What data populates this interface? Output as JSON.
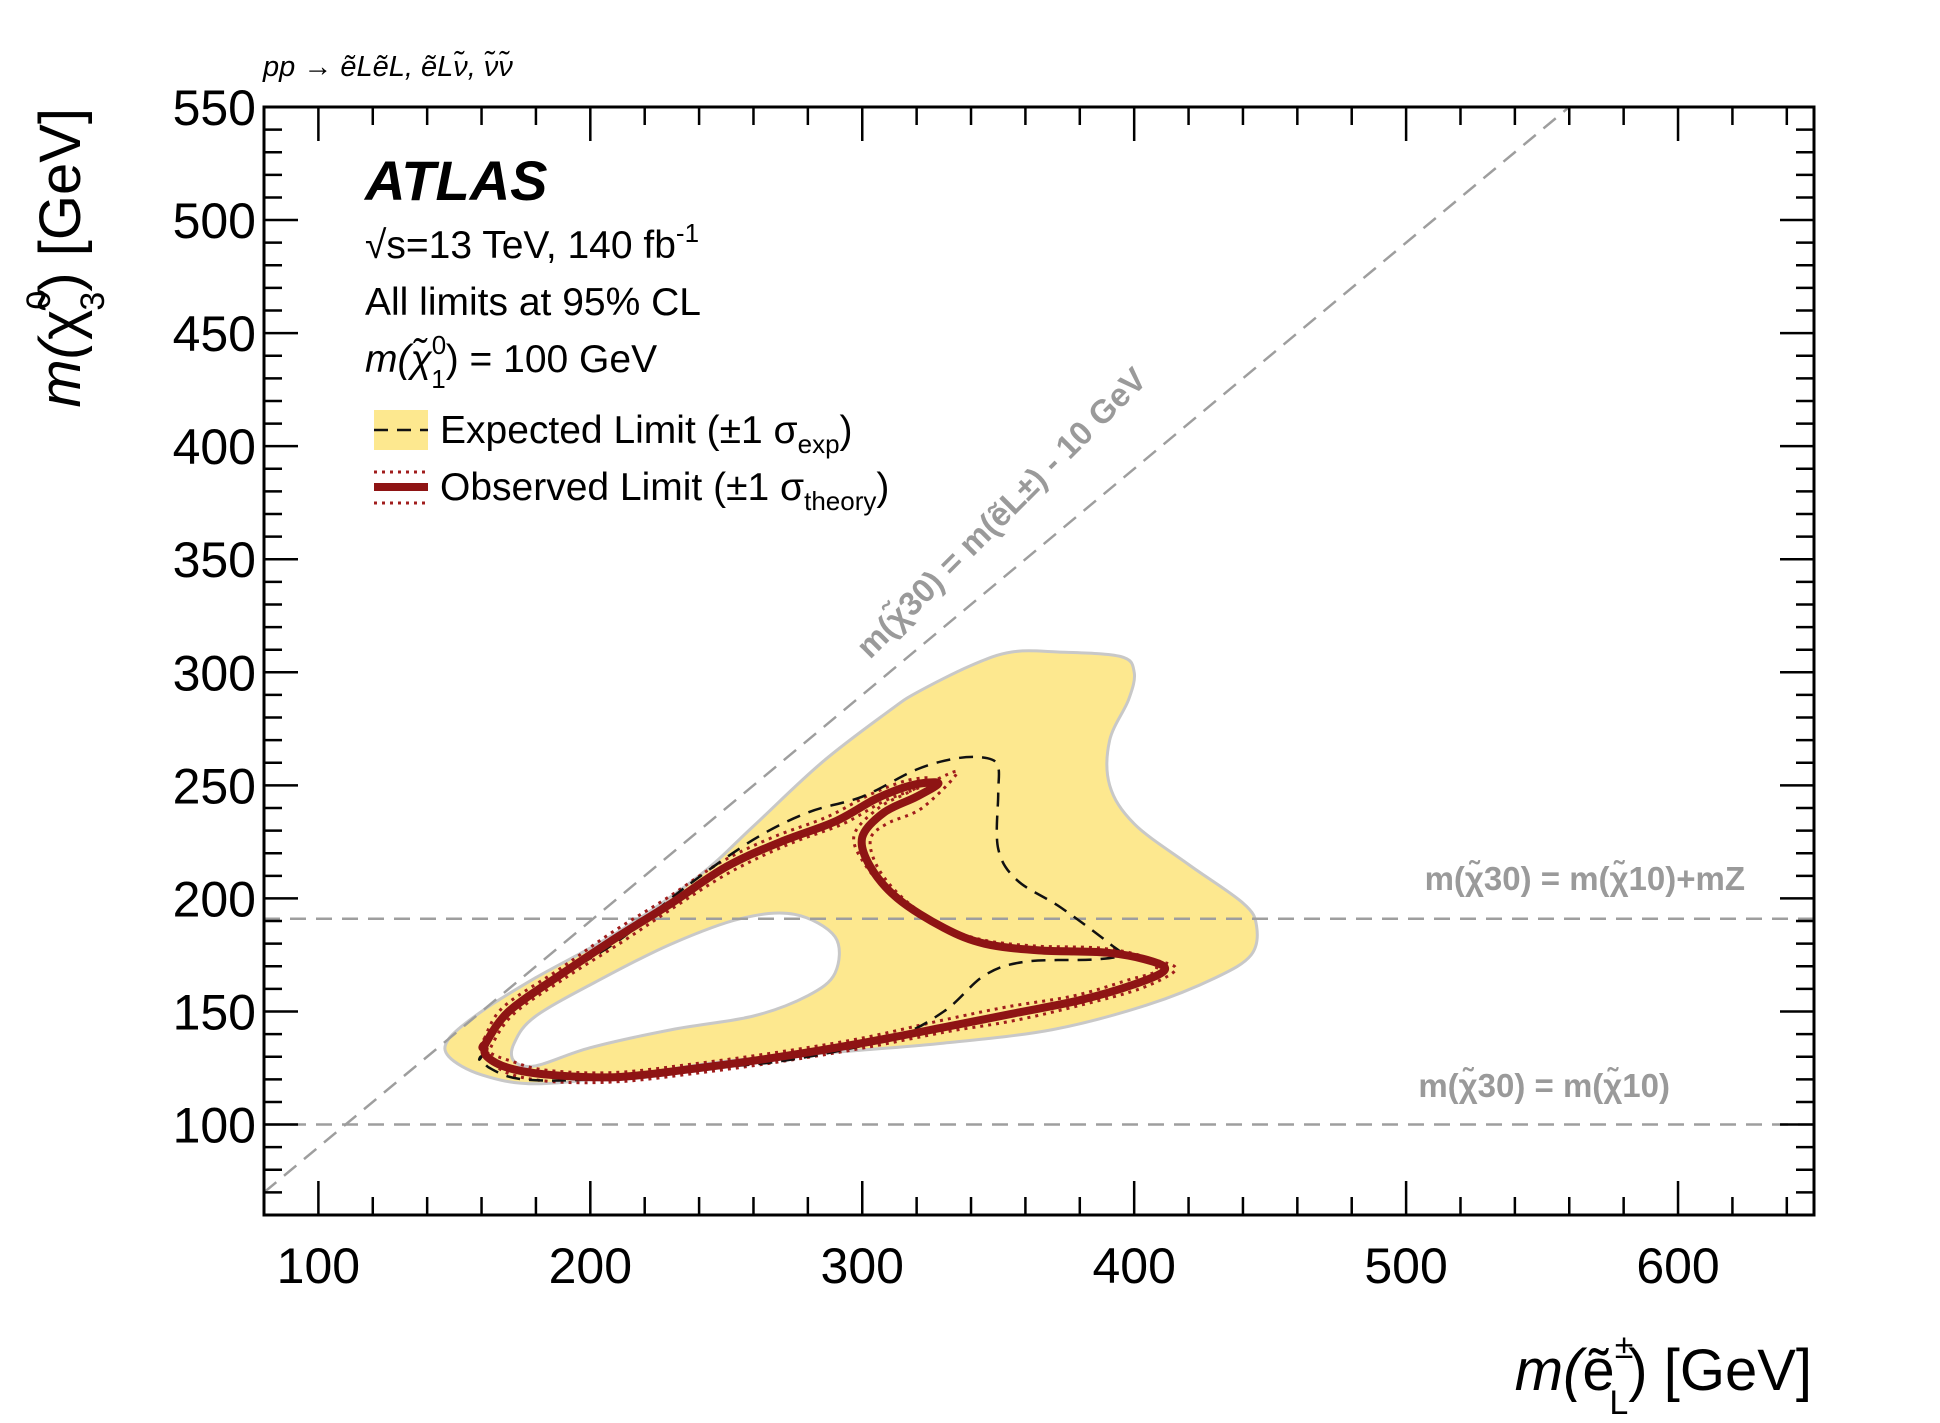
{
  "chart_data": {
    "type": "line",
    "process": "pp → ẽLẽL, ẽLν̃, ν̃ν̃",
    "xlabel": {
      "prefix": "m(",
      "symbol": "ẽ",
      "sup": "±",
      "sub": "L",
      "suffix": ") [GeV]"
    },
    "ylabel": {
      "prefix": "m(",
      "symbol": "χ̃",
      "sup": "0",
      "sub": "3",
      "suffix": ") [GeV]"
    },
    "xlim": [
      80,
      650
    ],
    "ylim": [
      60,
      550
    ],
    "x_ticks": [
      100,
      200,
      300,
      400,
      500,
      600
    ],
    "y_ticks": [
      100,
      150,
      200,
      250,
      300,
      350,
      400,
      450,
      500,
      550
    ],
    "info": {
      "brand": "ATLAS",
      "energy": "√s=13 TeV, 140 fb",
      "energy_sup": "-1",
      "cl": "All limits at 95% CL",
      "lsp_prefix": "m(χ̃",
      "lsp_sup": "0",
      "lsp_sub": "1",
      "lsp_suffix": ") = 100 GeV"
    },
    "legend": {
      "expected": {
        "text": "Expected Limit (±1 σ",
        "sub": "exp",
        "close": ")"
      },
      "observed": {
        "text": "Observed Limit (±1 σ",
        "sub": "theory",
        "close": ")"
      }
    },
    "reference_lines": [
      {
        "type": "diagonal",
        "offset": -10,
        "label": "m(χ̃30) = m(ẽL±) - 10 GeV"
      },
      {
        "type": "horizontal",
        "y": 191,
        "label": "m(χ̃30) = m(χ̃10)+mZ"
      },
      {
        "type": "horizontal",
        "y": 100,
        "label": "m(χ̃30) = m(χ̃10)"
      }
    ],
    "band_outer": [
      [
        148,
        138
      ],
      [
        160,
        150
      ],
      [
        180,
        165
      ],
      [
        210,
        185
      ],
      [
        240,
        210
      ],
      [
        260,
        232
      ],
      [
        285,
        260
      ],
      [
        310,
        283
      ],
      [
        320,
        291
      ],
      [
        340,
        303
      ],
      [
        355,
        309
      ],
      [
        372,
        309
      ],
      [
        395,
        307
      ],
      [
        400,
        300
      ],
      [
        398,
        288
      ],
      [
        391,
        270
      ],
      [
        391,
        250
      ],
      [
        400,
        233
      ],
      [
        420,
        215
      ],
      [
        440,
        198
      ],
      [
        445,
        188
      ],
      [
        443,
        175
      ],
      [
        430,
        165
      ],
      [
        405,
        153
      ],
      [
        370,
        142
      ],
      [
        330,
        136
      ],
      [
        290,
        132
      ],
      [
        250,
        128
      ],
      [
        215,
        122
      ],
      [
        180,
        118
      ],
      [
        160,
        122
      ],
      [
        148,
        130
      ]
    ],
    "band_hole": [
      [
        172,
        128
      ],
      [
        180,
        126
      ],
      [
        200,
        134
      ],
      [
        230,
        142
      ],
      [
        260,
        148
      ],
      [
        280,
        157
      ],
      [
        290,
        167
      ],
      [
        290,
        183
      ],
      [
        275,
        193
      ],
      [
        255,
        191
      ],
      [
        230,
        180
      ],
      [
        205,
        165
      ],
      [
        180,
        148
      ],
      [
        172,
        136
      ]
    ],
    "expected_line": [
      [
        160,
        130
      ],
      [
        170,
        150
      ],
      [
        185,
        163
      ],
      [
        210,
        181
      ],
      [
        235,
        205
      ],
      [
        260,
        226
      ],
      [
        280,
        238
      ],
      [
        300,
        245
      ],
      [
        320,
        257
      ],
      [
        335,
        262
      ],
      [
        346,
        262
      ],
      [
        350,
        258
      ],
      [
        350,
        246
      ],
      [
        350,
        222
      ],
      [
        357,
        208
      ],
      [
        373,
        196
      ],
      [
        391,
        180
      ],
      [
        395,
        175
      ],
      [
        385,
        173
      ],
      [
        360,
        172
      ],
      [
        345,
        166
      ],
      [
        330,
        150
      ],
      [
        310,
        138
      ],
      [
        270,
        128
      ],
      [
        230,
        124
      ],
      [
        200,
        120
      ],
      [
        175,
        120
      ],
      [
        163,
        125
      ],
      [
        160,
        130
      ]
    ],
    "observed_line": [
      [
        161,
        135
      ],
      [
        170,
        150
      ],
      [
        190,
        167
      ],
      [
        210,
        183
      ],
      [
        230,
        198
      ],
      [
        250,
        214
      ],
      [
        270,
        225
      ],
      [
        290,
        234
      ],
      [
        305,
        244
      ],
      [
        318,
        250
      ],
      [
        328,
        251
      ],
      [
        320,
        245
      ],
      [
        308,
        238
      ],
      [
        300,
        227
      ],
      [
        303,
        214
      ],
      [
        313,
        200
      ],
      [
        330,
        187
      ],
      [
        345,
        180
      ],
      [
        365,
        177
      ],
      [
        390,
        176
      ],
      [
        407,
        172
      ],
      [
        411,
        168
      ],
      [
        400,
        162
      ],
      [
        380,
        155
      ],
      [
        355,
        149
      ],
      [
        330,
        143
      ],
      [
        300,
        136
      ],
      [
        270,
        130
      ],
      [
        240,
        125
      ],
      [
        210,
        121
      ],
      [
        185,
        122
      ],
      [
        170,
        125
      ],
      [
        162,
        130
      ],
      [
        161,
        135
      ]
    ],
    "observed_dotted_a": [
      [
        162,
        131
      ],
      [
        171,
        148
      ],
      [
        191,
        165
      ],
      [
        212,
        181
      ],
      [
        232,
        197
      ],
      [
        252,
        212
      ],
      [
        273,
        224
      ],
      [
        293,
        233
      ],
      [
        308,
        243
      ],
      [
        321,
        249
      ],
      [
        335,
        256
      ],
      [
        322,
        240
      ],
      [
        309,
        233
      ],
      [
        303,
        226
      ],
      [
        306,
        213
      ],
      [
        316,
        199
      ],
      [
        332,
        186
      ],
      [
        348,
        179
      ],
      [
        368,
        176
      ],
      [
        393,
        175
      ],
      [
        410,
        172
      ],
      [
        415,
        168
      ],
      [
        402,
        160
      ],
      [
        381,
        153
      ],
      [
        356,
        146
      ],
      [
        331,
        141
      ],
      [
        301,
        134
      ],
      [
        271,
        128
      ],
      [
        241,
        123
      ],
      [
        211,
        119
      ],
      [
        186,
        119
      ],
      [
        169,
        123
      ],
      [
        162,
        131
      ]
    ],
    "observed_dotted_b": [
      [
        161,
        138
      ],
      [
        168,
        152
      ],
      [
        189,
        169
      ],
      [
        208,
        185
      ],
      [
        228,
        200
      ],
      [
        248,
        216
      ],
      [
        267,
        227
      ],
      [
        287,
        236
      ],
      [
        303,
        246
      ],
      [
        316,
        252
      ],
      [
        325,
        253
      ],
      [
        317,
        247
      ],
      [
        306,
        240
      ],
      [
        297,
        228
      ],
      [
        301,
        215
      ],
      [
        311,
        202
      ],
      [
        328,
        189
      ],
      [
        343,
        182
      ],
      [
        363,
        179
      ],
      [
        388,
        178
      ],
      [
        404,
        174
      ],
      [
        408,
        168
      ],
      [
        398,
        164
      ],
      [
        378,
        157
      ],
      [
        353,
        152
      ],
      [
        329,
        146
      ],
      [
        299,
        138
      ],
      [
        269,
        132
      ],
      [
        239,
        127
      ],
      [
        209,
        123
      ],
      [
        184,
        124
      ],
      [
        171,
        128
      ],
      [
        163,
        132
      ],
      [
        161,
        138
      ]
    ]
  }
}
